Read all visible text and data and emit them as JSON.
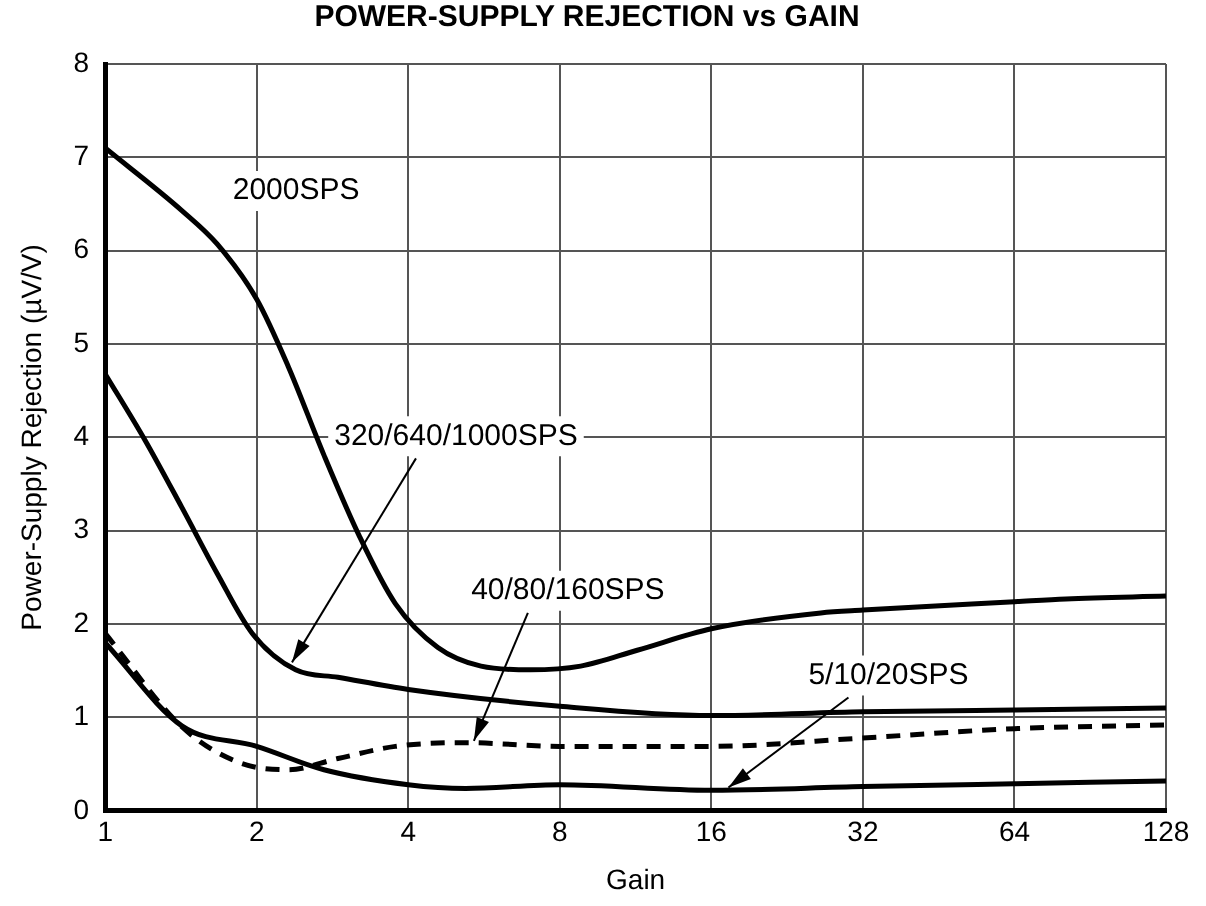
{
  "chart_data": {
    "type": "line",
    "title": "POWER-SUPPLY REJECTION vs GAIN",
    "xlabel": "Gain",
    "ylabel": "Power-Supply Rejection (µV/V)",
    "series": [
      {
        "color": "#000000",
        "line_style": "solid",
        "x": [
          1,
          1.42,
          1.67,
          2,
          2.31,
          2.72,
          3.2,
          3.77,
          4.58,
          5.58,
          7,
          8.8,
          11.4,
          16,
          26.4,
          32,
          64,
          81,
          128
        ],
        "values": [
          7.1,
          6.43,
          6.07,
          5.48,
          4.76,
          3.81,
          2.94,
          2.22,
          1.75,
          1.55,
          1.51,
          1.55,
          1.72,
          1.95,
          2.12,
          2.15,
          2.24,
          2.27,
          2.3
        ]
      },
      {
        "color": "#000000",
        "line_style": "solid",
        "x": [
          1,
          1.2,
          1.42,
          1.67,
          1.96,
          2.39,
          2.9,
          4,
          8,
          16,
          32,
          64,
          128
        ],
        "values": [
          4.68,
          3.97,
          3.25,
          2.54,
          1.9,
          1.51,
          1.43,
          1.3,
          1.12,
          1.02,
          1.06,
          1.08,
          1.1
        ]
      },
      {
        "color": "#000000",
        "line_style": "dashed",
        "x": [
          1,
          1.42,
          1.84,
          2.31,
          2.9,
          3.77,
          5.2,
          8,
          16,
          32,
          64,
          128
        ],
        "values": [
          1.9,
          0.9,
          0.52,
          0.44,
          0.56,
          0.69,
          0.73,
          0.69,
          0.69,
          0.78,
          0.88,
          0.92
        ]
      },
      {
        "color": "#000000",
        "line_style": "solid",
        "x": [
          1,
          1.42,
          2,
          2.72,
          4,
          5.2,
          8,
          16,
          32,
          64,
          128
        ],
        "values": [
          1.8,
          0.91,
          0.69,
          0.44,
          0.28,
          0.24,
          0.28,
          0.22,
          0.26,
          0.29,
          0.32
        ]
      }
    ],
    "annotations": [
      "2000SPS",
      {
        "text": "320/640/1000SPS",
        "x": 2.35,
        "y": 1.59
      },
      {
        "text": "40/80/160SPS",
        "x": 5.4,
        "y": 0.75
      },
      {
        "text": "5/10/20SPS",
        "x": 17.3,
        "y": 0.25
      }
    ],
    "log": "x",
    "xlim": [
      1,
      128
    ],
    "xticks": [
      1,
      2,
      4,
      8,
      16,
      32,
      64,
      128
    ],
    "ylim": [
      0,
      8
    ],
    "yticks": [
      0,
      1,
      2,
      3,
      4,
      5,
      6,
      7,
      8
    ],
    "grid": true,
    "legend": false,
    "marker": "none"
  }
}
